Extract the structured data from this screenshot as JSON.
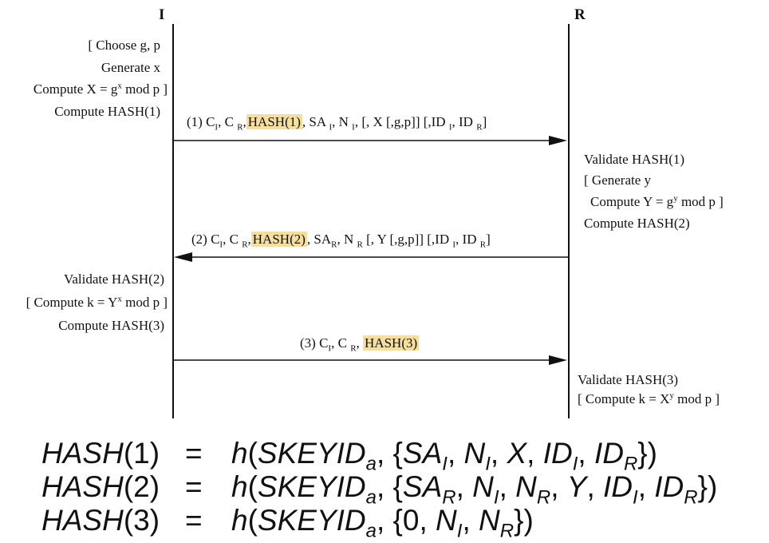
{
  "parties": {
    "initiator": "I",
    "responder": "R"
  },
  "initiator_pre": [
    "[ Choose g, p",
    "Generate x",
    "Compute X  = g",
    "x",
    " mod p ]",
    "Compute HASH(1)"
  ],
  "msg1": {
    "prefix": "(1)  C",
    "ci": "I",
    "cr_pre": ", C ",
    "cr": "R",
    "comma": ",",
    "hash": "HASH(1)",
    "rest": ", SA ",
    "sai": "I",
    "rest2": ", N ",
    "ni": "I",
    "tail": ", [, X [,g,p]] [,ID ",
    "idi": "I",
    "tail2": ", ID ",
    "idr": "R",
    "close": "]"
  },
  "responder_mid": [
    "Validate HASH(1)",
    "[ Generate y",
    "Compute Y  = g",
    "y",
    " mod p ]",
    "Compute HASH(2)"
  ],
  "msg2": {
    "prefix": "(2)  C",
    "ci": "I",
    "cr_pre": ", C ",
    "cr": "R",
    "comma": ",",
    "hash": "HASH(2)",
    "rest": ", SA",
    "sar": "R",
    "rest2": ", N ",
    "nr": "R",
    "tail": " [, Y [,g,p]] [,ID ",
    "idi": "I",
    "tail2": ", ID ",
    "idr": "R",
    "close": "]"
  },
  "initiator_post": [
    "Validate HASH(2)",
    "[ Compute k  = Y",
    "x",
    " mod p ]",
    "Compute HASH(3)"
  ],
  "msg3": {
    "prefix": "(3)  C",
    "ci": "I",
    "cr_pre": ", C ",
    "cr": "R",
    "comma": ",",
    "hash": "HASH(3)"
  },
  "responder_post": [
    "Validate HASH(3)",
    "[ Compute k  = X",
    "y",
    " mod p ]"
  ],
  "equations": [
    {
      "lhs": "HASH",
      "lhs_n": "(1)",
      "op": "=",
      "f": "h",
      "args": "SKEYID",
      "a": "a",
      "set": [
        "SA",
        "I",
        "N",
        "I",
        "X",
        "ID",
        "I",
        "ID",
        "R"
      ]
    },
    {
      "lhs": "HASH",
      "lhs_n": "(2)",
      "op": "=",
      "f": "h",
      "args": "SKEYID",
      "a": "a",
      "set": [
        "SA",
        "R",
        "N",
        "I",
        "N",
        "R",
        "Y",
        "ID",
        "I",
        "ID",
        "R"
      ]
    },
    {
      "lhs": "HASH",
      "lhs_n": "(3)",
      "op": "=",
      "f": "h",
      "args": "SKEYID",
      "a": "a",
      "set": [
        "0",
        "N",
        "I",
        "N",
        "R"
      ]
    }
  ],
  "colors": {
    "highlight": "#f6df9e",
    "line": "#111111"
  }
}
